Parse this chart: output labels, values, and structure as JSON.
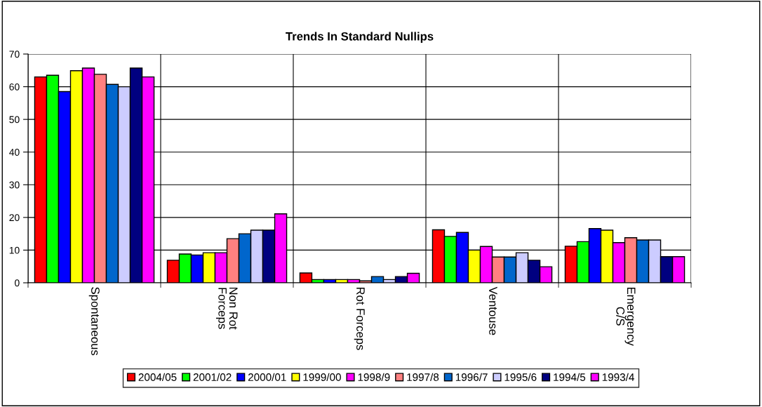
{
  "chart_data": {
    "type": "bar",
    "title": "Trends In Standard Nullips",
    "categories": [
      "Spontaneous",
      "Non Rot\nForceps",
      "Rot Forceps",
      "Ventouse",
      "Emergency\nC/S"
    ],
    "series": [
      {
        "name": "2004/05",
        "color": "#ff0000",
        "values": [
          63.0,
          6.9,
          3.0,
          16.2,
          11.2
        ]
      },
      {
        "name": "2001/02",
        "color": "#00ff00",
        "values": [
          63.5,
          8.8,
          1.0,
          14.2,
          12.6
        ]
      },
      {
        "name": "2000/01",
        "color": "#0000ff",
        "values": [
          58.5,
          8.5,
          1.0,
          15.4,
          16.6
        ]
      },
      {
        "name": "1999/00",
        "color": "#ffff00",
        "values": [
          64.9,
          9.2,
          1.0,
          10.0,
          16.1
        ]
      },
      {
        "name": "1998/9",
        "color": "#ff00ff",
        "values": [
          65.7,
          9.2,
          1.0,
          11.1,
          12.3
        ]
      },
      {
        "name": "1997/8",
        "color": "#ff8080",
        "values": [
          63.8,
          13.5,
          0.6,
          7.9,
          13.8
        ]
      },
      {
        "name": "1996/7",
        "color": "#0066cc",
        "values": [
          60.7,
          15.0,
          1.9,
          7.9,
          13.1
        ]
      },
      {
        "name": "1995/6",
        "color": "#ccccff",
        "values": [
          60.0,
          16.1,
          1.0,
          9.2,
          13.1
        ]
      },
      {
        "name": "1994/5",
        "color": "#000080",
        "values": [
          65.7,
          16.1,
          1.9,
          6.9,
          8.0
        ]
      },
      {
        "name": "1993/4",
        "color": "#ff00ff",
        "values": [
          63.0,
          21.1,
          2.9,
          4.9,
          8.0
        ]
      }
    ],
    "ylim": [
      0,
      70
    ],
    "yticks": [
      0,
      10,
      20,
      30,
      40,
      50,
      60,
      70
    ],
    "grid": true,
    "legend": "bottom"
  }
}
